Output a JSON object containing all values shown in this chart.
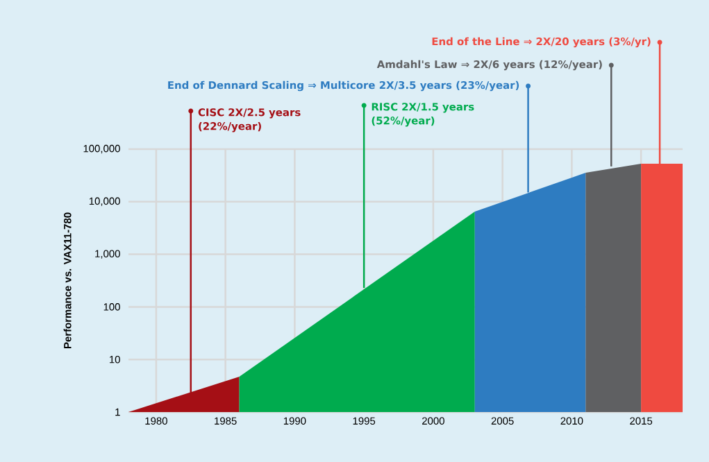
{
  "chart_data": {
    "type": "area",
    "ylabel": "Performance vs. VAX11-780",
    "log": "y",
    "xlim": [
      1978,
      2018
    ],
    "xticks": [
      1980,
      1985,
      1990,
      1995,
      2000,
      2005,
      2010,
      2015
    ],
    "ylim": [
      1,
      100000
    ],
    "yticks": [
      1,
      10,
      100,
      {
        "value": 1000,
        "label": "1,000"
      },
      {
        "value": 10000,
        "label": "10,000"
      },
      {
        "value": 100000,
        "label": "100,000"
      }
    ],
    "grid": true,
    "series": [
      {
        "color": "#a50f15",
        "x": [
          1978,
          1986
        ],
        "values": [
          1,
          4.7
        ]
      },
      {
        "color": "#00ab4e",
        "x": [
          1986,
          2003
        ],
        "values": [
          4.7,
          6500
        ]
      },
      {
        "color": "#2e7cc1",
        "x": [
          2003,
          2011
        ],
        "values": [
          6500,
          35500
        ]
      },
      {
        "color": "#5f6062",
        "x": [
          2011,
          2015
        ],
        "values": [
          35500,
          52700
        ]
      },
      {
        "color": "#ef4a40",
        "x": [
          2015,
          2018
        ],
        "values": [
          52700,
          52700
        ]
      }
    ],
    "annotations": [
      {
        "text": "CISC 2X/2.5 years (22%/year)",
        "x": 1982.5,
        "y": 2.3
      },
      {
        "text": "RISC 2X/1.5 years (52%/year)",
        "x": 1995,
        "y": 230
      },
      {
        "text": "End of Dennard Scaling ⇒ Multicore 2X/3.5 years (23%/year)",
        "x": 2006.85,
        "y": 15000
      },
      {
        "text": "Amdahl's Law ⇒ 2X/6 years (12%/year)",
        "x": 2012.85,
        "y": 47000
      },
      {
        "text": "End of the Line ⇒ 2X/20 years (3%/yr)",
        "x": 2016.35,
        "y": 52700
      }
    ]
  }
}
